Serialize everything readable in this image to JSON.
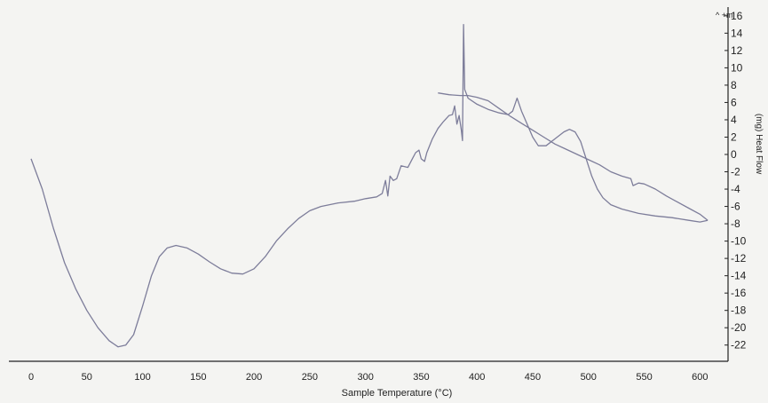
{
  "chart_data": {
    "type": "line",
    "title": "",
    "xlabel": "Sample Temperature (°C)",
    "ylabel": "(mg) Heat Flow",
    "y_axis_marker": "^ +m",
    "xlim": [
      -5,
      615
    ],
    "ylim": [
      -23,
      16
    ],
    "x_ticks": [
      0,
      50,
      100,
      150,
      200,
      250,
      300,
      350,
      400,
      450,
      500,
      550,
      600
    ],
    "y_ticks": [
      16,
      14,
      12,
      10,
      8,
      6,
      4,
      2,
      0,
      -2,
      -4,
      -6,
      -8,
      -10,
      -12,
      -14,
      -16,
      -18,
      -20,
      -22
    ],
    "grid": false,
    "legend": "none",
    "line_color": "#7d7d9a",
    "series": [
      {
        "values": [
          [
            0,
            -0.5
          ],
          [
            10,
            -4
          ],
          [
            20,
            -8.5
          ],
          [
            30,
            -12.5
          ],
          [
            40,
            -15.5
          ],
          [
            50,
            -18
          ],
          [
            60,
            -20
          ],
          [
            70,
            -21.5
          ],
          [
            78,
            -22.2
          ],
          [
            85,
            -22
          ],
          [
            92,
            -20.8
          ],
          [
            100,
            -17.5
          ],
          [
            108,
            -14
          ],
          [
            115,
            -11.8
          ],
          [
            122,
            -10.8
          ],
          [
            130,
            -10.5
          ],
          [
            140,
            -10.8
          ],
          [
            150,
            -11.5
          ],
          [
            160,
            -12.4
          ],
          [
            170,
            -13.2
          ],
          [
            180,
            -13.7
          ],
          [
            190,
            -13.8
          ],
          [
            200,
            -13.2
          ],
          [
            210,
            -11.8
          ],
          [
            220,
            -10
          ],
          [
            230,
            -8.6
          ],
          [
            240,
            -7.4
          ],
          [
            250,
            -6.5
          ],
          [
            260,
            -6
          ],
          [
            275,
            -5.6
          ],
          [
            290,
            -5.4
          ],
          [
            300,
            -5.1
          ],
          [
            310,
            -4.9
          ],
          [
            315,
            -4.5
          ],
          [
            318,
            -3
          ],
          [
            320,
            -4.8
          ],
          [
            322,
            -2.5
          ],
          [
            325,
            -3
          ],
          [
            328,
            -2.8
          ],
          [
            332,
            -1.3
          ],
          [
            338,
            -1.5
          ],
          [
            342,
            -0.5
          ],
          [
            345,
            0.2
          ],
          [
            348,
            0.5
          ],
          [
            350,
            -0.5
          ],
          [
            353,
            -0.8
          ],
          [
            355,
            0.2
          ],
          [
            360,
            1.8
          ],
          [
            365,
            3
          ],
          [
            370,
            3.8
          ],
          [
            375,
            4.5
          ],
          [
            378,
            4.6
          ],
          [
            380,
            5.6
          ],
          [
            382,
            3.5
          ],
          [
            384,
            4.5
          ],
          [
            386,
            2.8
          ],
          [
            387,
            1.6
          ],
          [
            388,
            15
          ],
          [
            389,
            7.5
          ],
          [
            392,
            6.5
          ],
          [
            400,
            5.8
          ],
          [
            410,
            5.2
          ],
          [
            420,
            4.8
          ],
          [
            428,
            4.6
          ],
          [
            432,
            5
          ],
          [
            436,
            6.5
          ],
          [
            440,
            5
          ],
          [
            445,
            3.5
          ],
          [
            450,
            2
          ],
          [
            455,
            1
          ],
          [
            462,
            1
          ],
          [
            470,
            1.8
          ],
          [
            478,
            2.6
          ],
          [
            483,
            2.9
          ],
          [
            488,
            2.6
          ],
          [
            493,
            1.5
          ],
          [
            498,
            -0.5
          ],
          [
            503,
            -2.5
          ],
          [
            508,
            -4
          ],
          [
            513,
            -5
          ],
          [
            520,
            -5.8
          ],
          [
            530,
            -6.3
          ],
          [
            545,
            -6.8
          ],
          [
            560,
            -7.1
          ],
          [
            575,
            -7.3
          ],
          [
            590,
            -7.6
          ],
          [
            600,
            -7.8
          ],
          [
            607,
            -7.6
          ]
        ]
      },
      {
        "values": [
          [
            607,
            -7.6
          ],
          [
            600,
            -6.9
          ],
          [
            590,
            -6.2
          ],
          [
            580,
            -5.5
          ],
          [
            570,
            -4.8
          ],
          [
            560,
            -4
          ],
          [
            550,
            -3.4
          ],
          [
            545,
            -3.3
          ],
          [
            540,
            -3.6
          ],
          [
            538,
            -2.8
          ],
          [
            530,
            -2.5
          ],
          [
            520,
            -2
          ],
          [
            510,
            -1.2
          ],
          [
            500,
            -0.6
          ],
          [
            490,
            0
          ],
          [
            480,
            0.6
          ],
          [
            470,
            1.2
          ],
          [
            460,
            2
          ],
          [
            450,
            2.8
          ],
          [
            440,
            3.6
          ],
          [
            430,
            4.4
          ],
          [
            420,
            5.3
          ],
          [
            410,
            6.2
          ],
          [
            400,
            6.6
          ],
          [
            392,
            6.8
          ],
          [
            385,
            6.8
          ],
          [
            375,
            6.9
          ],
          [
            365,
            7.1
          ]
        ]
      }
    ]
  }
}
